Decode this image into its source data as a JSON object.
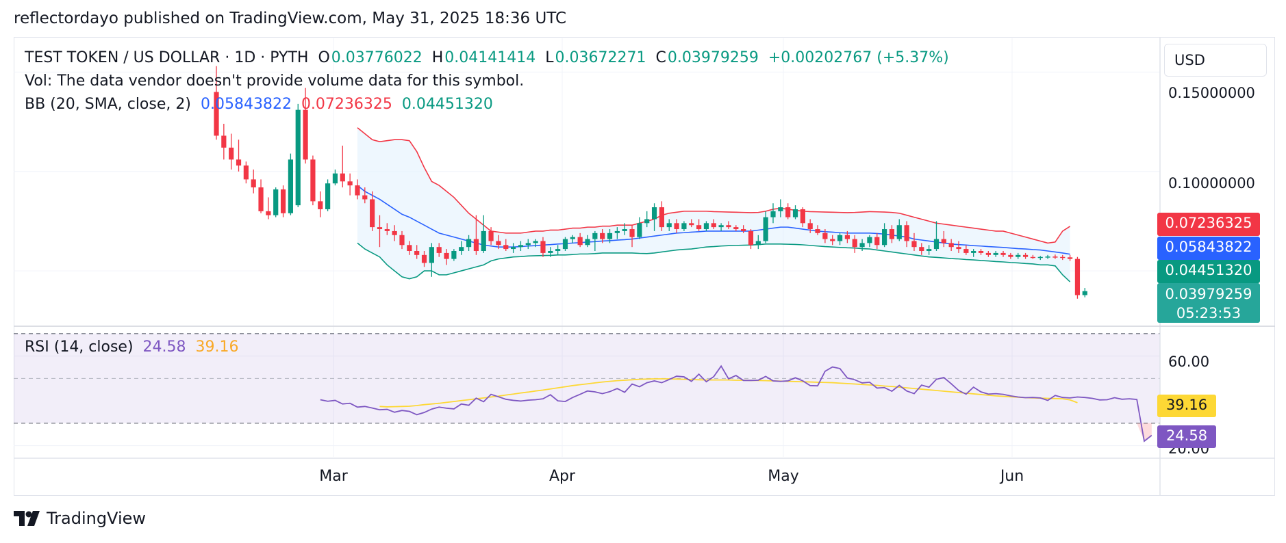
{
  "header": {
    "publisher_text": "reflectordayo published on TradingView.com, May 31, 2025 18:36 UTC"
  },
  "legend": {
    "symbol": "TEST TOKEN / US DOLLAR · 1D · PYTH",
    "open_label": "O",
    "open": "0.03776022",
    "high_label": "H",
    "high": "0.04141414",
    "low_label": "L",
    "low": "0.03672271",
    "close_label": "C",
    "close": "0.03979259",
    "change": "+0.00202767 (+5.37%)",
    "vol_text": "Vol: The data vendor doesn't provide volume data for this symbol.",
    "bb_label": "BB (20, SMA, close, 2)",
    "bb_basis": "0.05843822",
    "bb_upper": "0.07236325",
    "bb_lower": "0.04451320",
    "rsi_label": "RSI (14, close)",
    "rsi_value": "24.58",
    "rsi_ma": "39.16"
  },
  "currency_button": "USD",
  "price_axis": {
    "ticks": [
      "0.15000000",
      "0.10000000"
    ]
  },
  "rsi_axis": {
    "ticks": [
      "60.00",
      "20.00"
    ]
  },
  "price_tags": {
    "upper": "0.07236325",
    "basis": "0.05843822",
    "lower": "0.04451320",
    "last": "0.03979259",
    "countdown": "05:23:53",
    "rsi_ma": "39.16",
    "rsi": "24.58"
  },
  "time_axis": {
    "labels": [
      "Mar",
      "Apr",
      "May",
      "Jun"
    ]
  },
  "colors": {
    "up": "#089981",
    "down": "#f23645",
    "bb_basis": "#2962ff",
    "bb_upper": "#f23645",
    "bb_lower": "#089981",
    "bb_fill": "#e3f2fd",
    "rsi": "#7e57c2",
    "rsi_ma": "#fdd835",
    "rsi_band": "#7e57c2"
  },
  "brand": "TradingView",
  "chart_data": {
    "type": "candlestick",
    "title": "TEST TOKEN / US DOLLAR · 1D · PYTH",
    "x_labels": [
      "Mar",
      "Apr",
      "May",
      "Jun"
    ],
    "ylim": [
      0.0225,
      0.167
    ],
    "start_date": "2025-02-11",
    "candles": [
      [
        0.14,
        0.153,
        0.116,
        0.118
      ],
      [
        0.118,
        0.124,
        0.106,
        0.112
      ],
      [
        0.112,
        0.119,
        0.101,
        0.106
      ],
      [
        0.106,
        0.116,
        0.1,
        0.103
      ],
      [
        0.103,
        0.105,
        0.094,
        0.096
      ],
      [
        0.096,
        0.101,
        0.089,
        0.092
      ],
      [
        0.092,
        0.096,
        0.079,
        0.08
      ],
      [
        0.08,
        0.087,
        0.076,
        0.078
      ],
      [
        0.078,
        0.092,
        0.077,
        0.091
      ],
      [
        0.091,
        0.093,
        0.077,
        0.079
      ],
      [
        0.079,
        0.109,
        0.078,
        0.106
      ],
      [
        0.083,
        0.134,
        0.082,
        0.131
      ],
      [
        0.131,
        0.142,
        0.104,
        0.106
      ],
      [
        0.106,
        0.108,
        0.083,
        0.085
      ],
      [
        0.085,
        0.09,
        0.077,
        0.081
      ],
      [
        0.081,
        0.096,
        0.08,
        0.094
      ],
      [
        0.094,
        0.101,
        0.093,
        0.099
      ],
      [
        0.099,
        0.113,
        0.092,
        0.095
      ],
      [
        0.095,
        0.099,
        0.088,
        0.093
      ],
      [
        0.093,
        0.096,
        0.086,
        0.088
      ],
      [
        0.088,
        0.092,
        0.084,
        0.086
      ],
      [
        0.086,
        0.09,
        0.07,
        0.072
      ],
      [
        0.072,
        0.078,
        0.062,
        0.071
      ],
      [
        0.071,
        0.074,
        0.068,
        0.07
      ],
      [
        0.07,
        0.073,
        0.065,
        0.068
      ],
      [
        0.068,
        0.07,
        0.061,
        0.063
      ],
      [
        0.063,
        0.065,
        0.058,
        0.06
      ],
      [
        0.06,
        0.063,
        0.056,
        0.058
      ],
      [
        0.058,
        0.06,
        0.052,
        0.054
      ],
      [
        0.054,
        0.064,
        0.047,
        0.062
      ],
      [
        0.062,
        0.064,
        0.057,
        0.059
      ],
      [
        0.059,
        0.061,
        0.053,
        0.056
      ],
      [
        0.056,
        0.061,
        0.055,
        0.06
      ],
      [
        0.06,
        0.065,
        0.058,
        0.062
      ],
      [
        0.062,
        0.068,
        0.06,
        0.066
      ],
      [
        0.066,
        0.078,
        0.058,
        0.06
      ],
      [
        0.06,
        0.078,
        0.059,
        0.07
      ],
      [
        0.07,
        0.072,
        0.063,
        0.065
      ],
      [
        0.065,
        0.068,
        0.061,
        0.063
      ],
      [
        0.063,
        0.066,
        0.06,
        0.061
      ],
      [
        0.061,
        0.064,
        0.059,
        0.062
      ],
      [
        0.062,
        0.065,
        0.06,
        0.063
      ],
      [
        0.063,
        0.066,
        0.061,
        0.064
      ],
      [
        0.064,
        0.066,
        0.062,
        0.065
      ],
      [
        0.065,
        0.067,
        0.057,
        0.059
      ],
      [
        0.059,
        0.062,
        0.057,
        0.06
      ],
      [
        0.06,
        0.063,
        0.058,
        0.061
      ],
      [
        0.061,
        0.067,
        0.06,
        0.066
      ],
      [
        0.066,
        0.068,
        0.064,
        0.067
      ],
      [
        0.067,
        0.069,
        0.062,
        0.063
      ],
      [
        0.063,
        0.068,
        0.062,
        0.066
      ],
      [
        0.066,
        0.07,
        0.06,
        0.069
      ],
      [
        0.069,
        0.071,
        0.064,
        0.066
      ],
      [
        0.066,
        0.071,
        0.064,
        0.069
      ],
      [
        0.069,
        0.072,
        0.066,
        0.07
      ],
      [
        0.07,
        0.074,
        0.068,
        0.071
      ],
      [
        0.071,
        0.073,
        0.062,
        0.067
      ],
      [
        0.067,
        0.077,
        0.066,
        0.074
      ],
      [
        0.074,
        0.08,
        0.072,
        0.076
      ],
      [
        0.076,
        0.084,
        0.07,
        0.082
      ],
      [
        0.082,
        0.085,
        0.07,
        0.072
      ],
      [
        0.072,
        0.076,
        0.07,
        0.074
      ],
      [
        0.074,
        0.076,
        0.069,
        0.071
      ],
      [
        0.071,
        0.075,
        0.07,
        0.074
      ],
      [
        0.074,
        0.076,
        0.072,
        0.073
      ],
      [
        0.073,
        0.076,
        0.07,
        0.071
      ],
      [
        0.071,
        0.075,
        0.07,
        0.074
      ],
      [
        0.074,
        0.076,
        0.071,
        0.072
      ],
      [
        0.072,
        0.074,
        0.07,
        0.073
      ],
      [
        0.073,
        0.075,
        0.071,
        0.072
      ],
      [
        0.072,
        0.073,
        0.07,
        0.071
      ],
      [
        0.071,
        0.073,
        0.069,
        0.07
      ],
      [
        0.07,
        0.071,
        0.061,
        0.063
      ],
      [
        0.063,
        0.068,
        0.061,
        0.065
      ],
      [
        0.065,
        0.08,
        0.064,
        0.077
      ],
      [
        0.077,
        0.084,
        0.074,
        0.08
      ],
      [
        0.08,
        0.086,
        0.077,
        0.082
      ],
      [
        0.082,
        0.084,
        0.076,
        0.077
      ],
      [
        0.077,
        0.083,
        0.076,
        0.081
      ],
      [
        0.081,
        0.082,
        0.072,
        0.074
      ],
      [
        0.074,
        0.076,
        0.069,
        0.071
      ],
      [
        0.071,
        0.073,
        0.068,
        0.069
      ],
      [
        0.069,
        0.071,
        0.064,
        0.066
      ],
      [
        0.066,
        0.068,
        0.063,
        0.065
      ],
      [
        0.065,
        0.069,
        0.063,
        0.068
      ],
      [
        0.068,
        0.07,
        0.064,
        0.066
      ],
      [
        0.066,
        0.068,
        0.059,
        0.062
      ],
      [
        0.062,
        0.066,
        0.06,
        0.064
      ],
      [
        0.064,
        0.068,
        0.062,
        0.067
      ],
      [
        0.067,
        0.069,
        0.061,
        0.063
      ],
      [
        0.063,
        0.074,
        0.062,
        0.071
      ],
      [
        0.071,
        0.073,
        0.064,
        0.066
      ],
      [
        0.066,
        0.076,
        0.065,
        0.073
      ],
      [
        0.073,
        0.075,
        0.062,
        0.065
      ],
      [
        0.065,
        0.069,
        0.06,
        0.062
      ],
      [
        0.062,
        0.064,
        0.058,
        0.06
      ],
      [
        0.06,
        0.063,
        0.058,
        0.061
      ],
      [
        0.061,
        0.075,
        0.06,
        0.066
      ],
      [
        0.066,
        0.07,
        0.062,
        0.064
      ],
      [
        0.064,
        0.066,
        0.06,
        0.062
      ],
      [
        0.062,
        0.065,
        0.059,
        0.061
      ],
      [
        0.061,
        0.063,
        0.058,
        0.059
      ],
      [
        0.059,
        0.061,
        0.057,
        0.06
      ],
      [
        0.06,
        0.061,
        0.058,
        0.059
      ],
      [
        0.059,
        0.06,
        0.057,
        0.058
      ],
      [
        0.058,
        0.06,
        0.057,
        0.059
      ],
      [
        0.059,
        0.06,
        0.057,
        0.058
      ],
      [
        0.058,
        0.059,
        0.056,
        0.057
      ],
      [
        0.057,
        0.059,
        0.056,
        0.058
      ],
      [
        0.058,
        0.059,
        0.056,
        0.057
      ],
      [
        0.057,
        0.058,
        0.056,
        0.0565
      ],
      [
        0.0565,
        0.0575,
        0.0555,
        0.057
      ],
      [
        0.057,
        0.058,
        0.056,
        0.0572
      ],
      [
        0.0572,
        0.0582,
        0.056,
        0.057
      ],
      [
        0.057,
        0.058,
        0.0555,
        0.0568
      ],
      [
        0.0568,
        0.058,
        0.055,
        0.056
      ],
      [
        0.056,
        0.057,
        0.036,
        0.0378
      ],
      [
        0.0378,
        0.0414,
        0.0367,
        0.0398
      ]
    ],
    "bb": {
      "period": 20,
      "start_index": 19,
      "upper": [
        0.122,
        0.119,
        0.116,
        0.115,
        0.1155,
        0.116,
        0.116,
        0.1155,
        0.11,
        0.102,
        0.095,
        0.093,
        0.09,
        0.087,
        0.083,
        0.079,
        0.076,
        0.073,
        0.07,
        0.0695,
        0.069,
        0.069,
        0.069,
        0.0695,
        0.07,
        0.07,
        0.0705,
        0.0705,
        0.071,
        0.0715,
        0.0715,
        0.072,
        0.072,
        0.0725,
        0.0725,
        0.073,
        0.073,
        0.073,
        0.074,
        0.075,
        0.076,
        0.078,
        0.079,
        0.0795,
        0.08,
        0.08,
        0.08,
        0.08,
        0.0798,
        0.0797,
        0.0796,
        0.0795,
        0.0794,
        0.0793,
        0.0794,
        0.08,
        0.081,
        0.0815,
        0.081,
        0.0805,
        0.08,
        0.0798,
        0.0797,
        0.0796,
        0.0795,
        0.0794,
        0.0793,
        0.0794,
        0.0796,
        0.0798,
        0.0797,
        0.0796,
        0.0794,
        0.079,
        0.078,
        0.077,
        0.076,
        0.075,
        0.074,
        0.0735,
        0.073,
        0.0725,
        0.072,
        0.0715,
        0.071,
        0.0705,
        0.07,
        0.07,
        0.069,
        0.068,
        0.067,
        0.066,
        0.065,
        0.064,
        0.0645,
        0.07,
        0.0724
      ],
      "basis": [
        0.093,
        0.09,
        0.088,
        0.086,
        0.0835,
        0.081,
        0.0785,
        0.077,
        0.075,
        0.073,
        0.071,
        0.069,
        0.068,
        0.067,
        0.066,
        0.065,
        0.064,
        0.063,
        0.0625,
        0.062,
        0.062,
        0.062,
        0.0622,
        0.0625,
        0.0627,
        0.063,
        0.0632,
        0.0635,
        0.0637,
        0.064,
        0.0642,
        0.0645,
        0.0647,
        0.065,
        0.0652,
        0.0655,
        0.0657,
        0.066,
        0.0665,
        0.067,
        0.0675,
        0.068,
        0.0685,
        0.069,
        0.0692,
        0.0695,
        0.0697,
        0.07,
        0.07,
        0.07,
        0.07,
        0.07,
        0.07,
        0.07,
        0.0705,
        0.071,
        0.0715,
        0.072,
        0.072,
        0.0715,
        0.071,
        0.0705,
        0.07,
        0.0697,
        0.0695,
        0.0692,
        0.069,
        0.069,
        0.069,
        0.069,
        0.0688,
        0.0685,
        0.068,
        0.0675,
        0.067,
        0.066,
        0.0655,
        0.065,
        0.0645,
        0.064,
        0.0635,
        0.0632,
        0.063,
        0.0627,
        0.0625,
        0.0622,
        0.062,
        0.0618,
        0.0615,
        0.0612,
        0.061,
        0.0607,
        0.0605,
        0.06,
        0.0595,
        0.059,
        0.0584
      ],
      "lower": [
        0.064,
        0.061,
        0.059,
        0.057,
        0.053,
        0.05,
        0.047,
        0.046,
        0.047,
        0.05,
        0.05,
        0.048,
        0.048,
        0.049,
        0.05,
        0.051,
        0.052,
        0.053,
        0.055,
        0.056,
        0.0565,
        0.057,
        0.0572,
        0.0575,
        0.0576,
        0.0577,
        0.0578,
        0.058,
        0.058,
        0.0582,
        0.0585,
        0.0585,
        0.0587,
        0.059,
        0.059,
        0.059,
        0.059,
        0.059,
        0.0588,
        0.0587,
        0.059,
        0.0595,
        0.06,
        0.0605,
        0.0608,
        0.061,
        0.0615,
        0.062,
        0.0622,
        0.0625,
        0.0627,
        0.0628,
        0.0629,
        0.063,
        0.0632,
        0.0635,
        0.0635,
        0.0635,
        0.0634,
        0.0633,
        0.0631,
        0.0628,
        0.0625,
        0.0622,
        0.062,
        0.0618,
        0.0616,
        0.0615,
        0.0612,
        0.061,
        0.0605,
        0.06,
        0.0595,
        0.059,
        0.0585,
        0.058,
        0.0575,
        0.057,
        0.0568,
        0.0565,
        0.0562,
        0.056,
        0.0557,
        0.0555,
        0.0552,
        0.055,
        0.0547,
        0.0545,
        0.0542,
        0.054,
        0.0537,
        0.0535,
        0.053,
        0.053,
        0.0525,
        0.048,
        0.0445
      ]
    },
    "rsi": {
      "period": 14,
      "start_index": 14,
      "ylim": [
        15,
        73
      ],
      "bands": [
        30,
        70
      ],
      "mid": 50,
      "values": [
        40.5,
        39.8,
        40.2,
        38.6,
        38.9,
        37.2,
        37.5,
        36.8,
        36.0,
        36.2,
        34.9,
        35.7,
        35.3,
        33.8,
        34.8,
        36.3,
        37.2,
        36.7,
        36.4,
        38.6,
        38.0,
        41.2,
        39.6,
        42.9,
        41.8,
        40.7,
        40.2,
        39.9,
        40.3,
        40.5,
        40.9,
        42.7,
        40.0,
        39.7,
        41.5,
        42.9,
        44.4,
        44.0,
        43.2,
        44.1,
        45.5,
        43.8,
        47.5,
        46.3,
        48.1,
        48.9,
        48.1,
        49.5,
        51.0,
        50.7,
        48.7,
        51.9,
        48.5,
        50.8,
        55.5,
        49.8,
        51.3,
        49.1,
        49.1,
        49.2,
        50.9,
        48.9,
        48.7,
        48.9,
        50.3,
        48.9,
        46.8,
        46.7,
        53.2,
        55.1,
        54.4,
        50.2,
        49.4,
        48.0,
        48.3,
        45.7,
        45.9,
        44.3,
        46.9,
        44.4,
        43.2,
        47.0,
        46.1,
        49.6,
        50.4,
        47.6,
        44.6,
        43.0,
        46.1,
        44.0,
        43.0,
        43.2,
        42.9,
        42.2,
        41.7,
        41.4,
        41.5,
        41.3,
        40.2,
        42.4,
        41.5,
        41.3,
        41.7,
        41.5,
        41.1,
        40.4,
        40.5,
        41.4,
        40.7,
        40.9,
        40.6,
        22.0,
        24.58
      ],
      "ma_start_index": 22,
      "ma_values": [
        37.5,
        37.3,
        37.4,
        37.5,
        37.6,
        37.9,
        38.3,
        38.6,
        38.9,
        39.3,
        39.7,
        40.1,
        40.5,
        40.9,
        41.3,
        41.7,
        42.1,
        42.6,
        43.0,
        43.5,
        43.9,
        44.4,
        44.8,
        45.3,
        45.8,
        46.3,
        46.8,
        47.2,
        47.6,
        48.0,
        48.4,
        48.7,
        49.0,
        49.2,
        49.4,
        49.6,
        49.7,
        49.8,
        49.8,
        49.8,
        49.7,
        49.6,
        49.5,
        49.4,
        49.3,
        49.3,
        49.3,
        49.3,
        49.2,
        49.2,
        49.1,
        49.1,
        49.0,
        48.9,
        48.8,
        48.7,
        48.6,
        48.5,
        48.4,
        48.3,
        48.2,
        48.1,
        47.9,
        47.7,
        47.5,
        47.3,
        47.1,
        46.9,
        46.6,
        46.4,
        46.1,
        45.8,
        45.5,
        45.2,
        44.9,
        44.6,
        44.3,
        44.0,
        43.7,
        43.4,
        43.1,
        42.8,
        42.5,
        42.2,
        42.0,
        41.8,
        41.6,
        41.4,
        41.3,
        41.2,
        41.1,
        41.0,
        40.9,
        40.4,
        39.16
      ]
    }
  }
}
